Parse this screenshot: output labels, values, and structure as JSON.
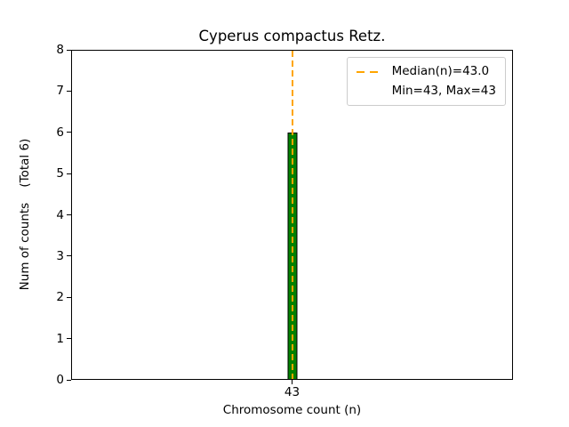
{
  "chart_data": {
    "type": "bar",
    "title": "Cyperus compactus Retz.",
    "xlabel": "Chromosome count (n)",
    "ylabel": "Num of counts    (Total 6)",
    "categories": [
      "43"
    ],
    "values": [
      6
    ],
    "total_counts": 6,
    "median_n": 43.0,
    "min_n": 43,
    "max_n": 43,
    "ylim": [
      0,
      8
    ],
    "yticks": [
      0,
      1,
      2,
      3,
      4,
      5,
      6,
      7,
      8
    ],
    "legend_entries": [
      "Median(n)=43.0",
      "Min=43, Max=43"
    ],
    "legend_position": "upper right",
    "grid": false,
    "colors": {
      "bar_fill": "#008000",
      "bar_edge": "#000000",
      "median_line": "#FFA500"
    }
  }
}
